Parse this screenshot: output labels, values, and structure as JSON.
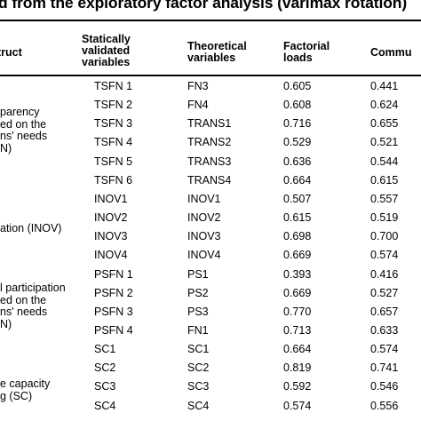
{
  "title": "d from the exploratory factor analysis (varimax rotation)",
  "headers": {
    "construct": "truct",
    "statically": [
      "Statically",
      "validated",
      "variables"
    ],
    "theoretical": [
      "Theoretical",
      "variables"
    ],
    "factorial": [
      "Factorial",
      "loads"
    ],
    "communality": "Commu"
  },
  "constructs": [
    [
      "parency",
      "ed on the",
      "ns' needs",
      "N)"
    ],
    [
      "ation (INOV)"
    ],
    [
      "l participation",
      "ed on the",
      "ns' needs",
      "N)"
    ],
    [
      "e capacity",
      "g (SC)"
    ]
  ],
  "rows": [
    {
      "stat": "TSFN 1",
      "theo": "FN3",
      "load": "0.605",
      "comm": "0.441"
    },
    {
      "stat": "TSFN 2",
      "theo": "FN4",
      "load": "0.608",
      "comm": "0.624"
    },
    {
      "stat": "TSFN 3",
      "theo": "TRANS1",
      "load": "0.716",
      "comm": "0.655"
    },
    {
      "stat": "TSFN 4",
      "theo": "TRANS2",
      "load": "0.529",
      "comm": "0.521"
    },
    {
      "stat": "TSFN 5",
      "theo": "TRANS3",
      "load": "0.636",
      "comm": "0.544"
    },
    {
      "stat": "TSFN 6",
      "theo": "TRANS4",
      "load": "0.664",
      "comm": "0.615"
    },
    {
      "stat": "INOV1",
      "theo": "INOV1",
      "load": "0.507",
      "comm": "0.557"
    },
    {
      "stat": "INOV2",
      "theo": "INOV2",
      "load": "0.615",
      "comm": "0.519"
    },
    {
      "stat": "INOV3",
      "theo": "INOV3",
      "load": "0.698",
      "comm": "0.700"
    },
    {
      "stat": "INOV4",
      "theo": "INOV4",
      "load": "0.669",
      "comm": "0.574"
    },
    {
      "stat": "PSFN 1",
      "theo": "PS1",
      "load": "0.393",
      "comm": "0.416"
    },
    {
      "stat": "PSFN 2",
      "theo": "PS2",
      "load": "0.669",
      "comm": "0.527"
    },
    {
      "stat": "PSFN 3",
      "theo": "PS3",
      "load": "0.770",
      "comm": "0.657"
    },
    {
      "stat": "PSFN 4",
      "theo": "FN1",
      "load": "0.713",
      "comm": "0.633"
    },
    {
      "stat": "SC1",
      "theo": "SC1",
      "load": "0.664",
      "comm": "0.574"
    },
    {
      "stat": "SC2",
      "theo": "SC2",
      "load": "0.819",
      "comm": "0.741"
    },
    {
      "stat": "SC3",
      "theo": "SC3",
      "load": "0.592",
      "comm": "0.546"
    },
    {
      "stat": "SC4",
      "theo": "SC4",
      "load": "0.574",
      "comm": "0.556"
    }
  ]
}
